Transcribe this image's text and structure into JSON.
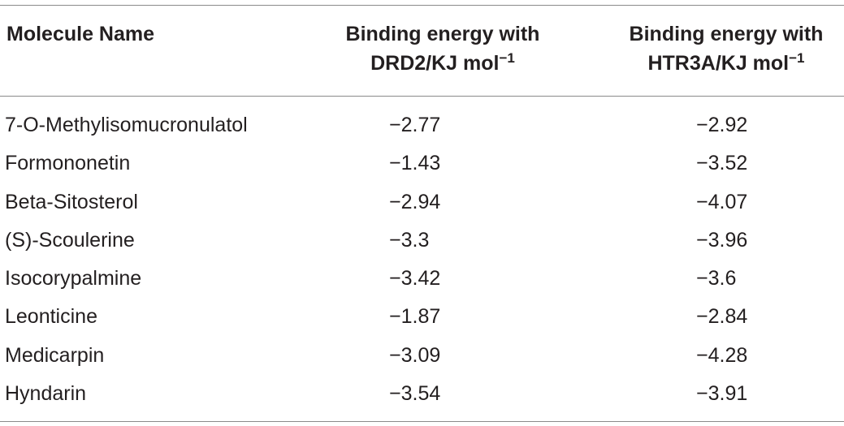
{
  "header": {
    "col_name": "Molecule Name",
    "col_drd2_line1": "Binding energy with",
    "col_drd2_line2": "DRD2/KJ mol",
    "col_htr3a_line1": "Binding energy with",
    "col_htr3a_line2": "HTR3A/KJ mol",
    "exponent": "−1"
  },
  "rows": [
    {
      "name": "7-O-Methylisomucronulatol",
      "drd2": "−2.77",
      "htr3a": "−2.92"
    },
    {
      "name": "Formononetin",
      "drd2": "−1.43",
      "htr3a": "−3.52"
    },
    {
      "name": "Beta-Sitosterol",
      "drd2": "−2.94",
      "htr3a": "−4.07"
    },
    {
      "name": "(S)-Scoulerine",
      "drd2": "−3.3",
      "htr3a": "−3.96"
    },
    {
      "name": "Isocorypalmine",
      "drd2": "−3.42",
      "htr3a": "−3.6"
    },
    {
      "name": "Leonticine",
      "drd2": "−1.87",
      "htr3a": "−2.84"
    },
    {
      "name": "Medicarpin",
      "drd2": "−3.09",
      "htr3a": "−4.28"
    },
    {
      "name": "Hyndarin",
      "drd2": "−3.54",
      "htr3a": "−3.91"
    }
  ]
}
